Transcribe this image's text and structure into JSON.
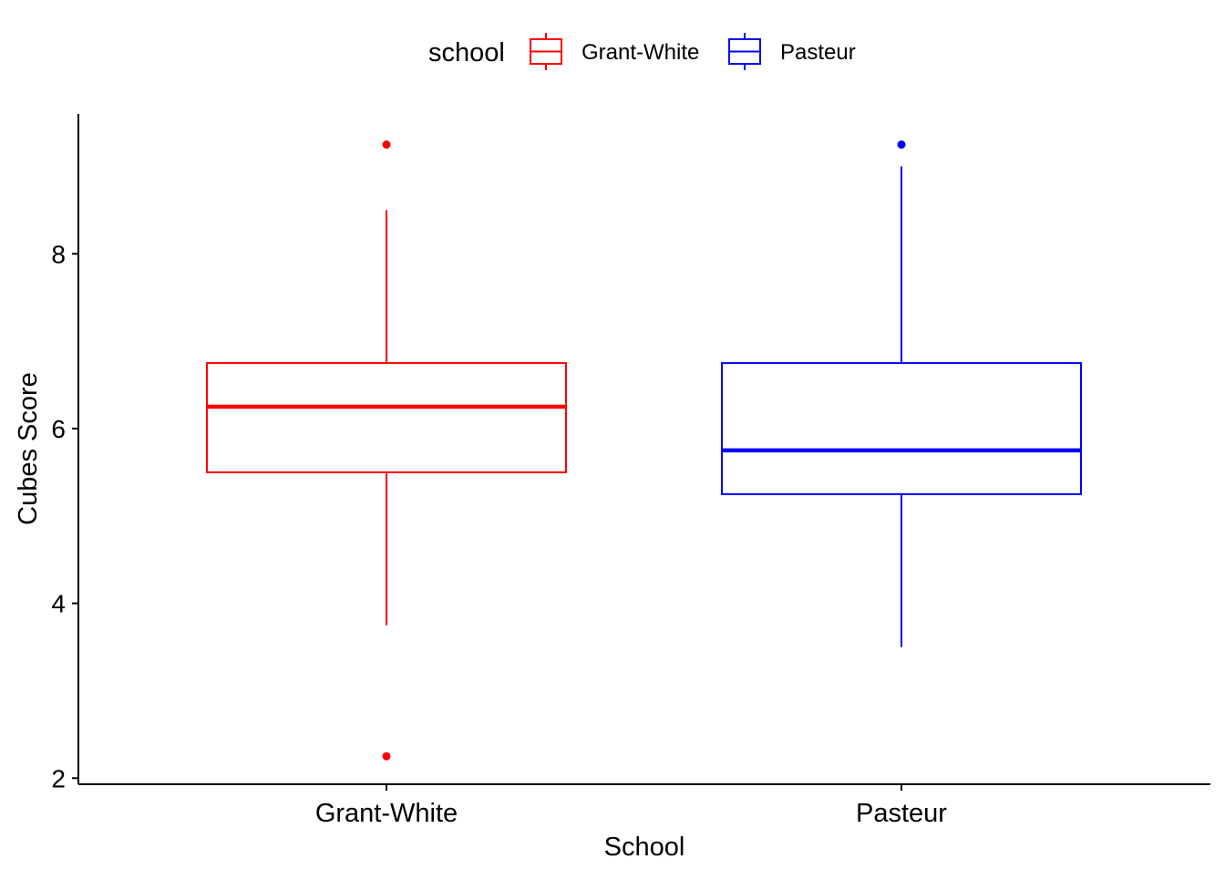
{
  "chart_data": {
    "type": "boxplot",
    "title": "",
    "xlabel": "School",
    "ylabel": "Cubes Score",
    "ylim": [
      1.93,
      9.6
    ],
    "yticks": [
      2,
      4,
      6,
      8
    ],
    "ytick_labels": [
      "2",
      "4",
      "6",
      "8"
    ],
    "categories": [
      "Grant-White",
      "Pasteur"
    ],
    "grid": false,
    "legend": {
      "title": "school",
      "position": "top",
      "entries": [
        "Grant-White",
        "Pasteur"
      ]
    },
    "series": [
      {
        "name": "Grant-White",
        "color": "#ff0000",
        "lower_whisker": 3.75,
        "q1": 5.5,
        "median": 6.25,
        "q3": 6.75,
        "upper_whisker": 8.5,
        "outliers": [
          9.25,
          2.25
        ]
      },
      {
        "name": "Pasteur",
        "color": "#0000ff",
        "lower_whisker": 3.5,
        "q1": 5.25,
        "median": 5.75,
        "q3": 6.75,
        "upper_whisker": 9.0,
        "outliers": [
          9.25
        ]
      }
    ]
  }
}
